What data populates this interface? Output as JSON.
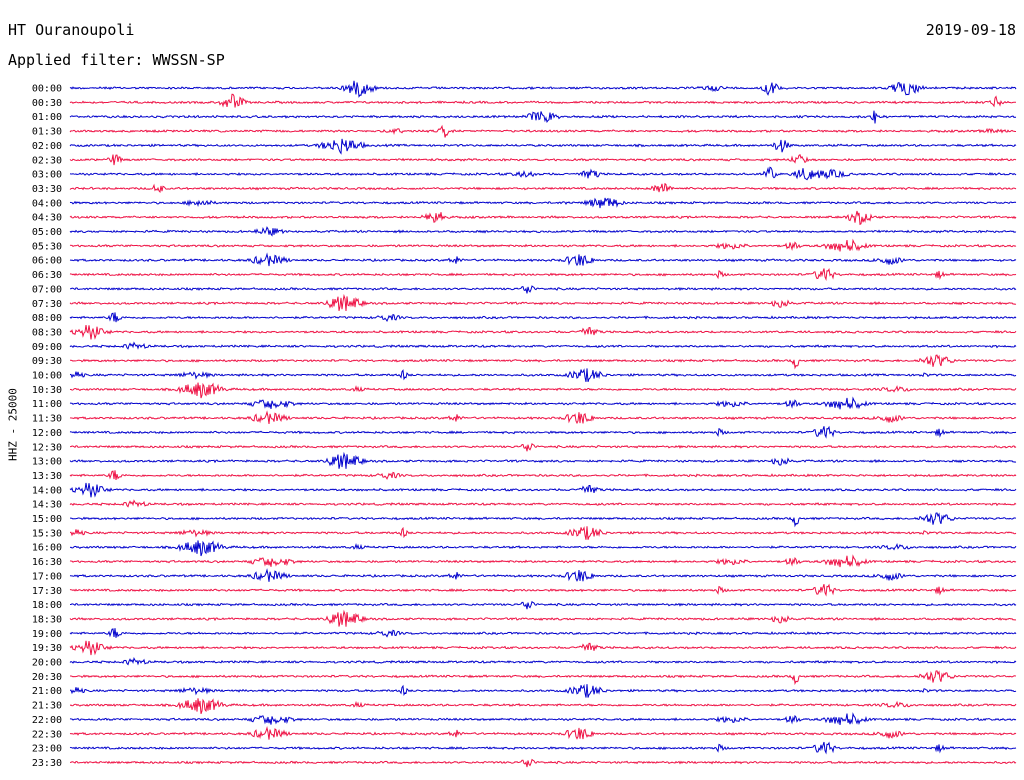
{
  "header": {
    "station": "HT Ouranoupoli",
    "date": "2019-09-18",
    "filter_prefix": "Applied filter: ",
    "filter_name": "WWSSN-SP"
  },
  "colors": {
    "trace_a": "#0000cc",
    "trace_b": "#ee1144"
  },
  "chart_data": {
    "type": "line",
    "title": "HT Ouranoupoli",
    "subtitle": "Applied filter: WWSSN-SP",
    "date": "2019-09-18",
    "ylabel": "HHZ - 25000",
    "xlabel": "",
    "grid": false,
    "row_labels": [
      "00:00",
      "00:30",
      "01:00",
      "01:30",
      "02:00",
      "02:30",
      "03:00",
      "03:30",
      "04:00",
      "04:30",
      "05:00",
      "05:30",
      "06:00",
      "06:30",
      "07:00",
      "07:30",
      "08:00",
      "08:30",
      "09:00",
      "09:30",
      "10:00",
      "10:30",
      "11:00",
      "11:30",
      "12:00",
      "12:30",
      "13:00",
      "13:30",
      "14:00",
      "14:30",
      "15:00",
      "15:30",
      "16:00",
      "16:30",
      "17:00",
      "17:30",
      "18:00",
      "18:30",
      "19:00",
      "19:30",
      "20:00",
      "20:30",
      "21:00",
      "21:30",
      "22:00",
      "22:30",
      "23:00",
      "23:30"
    ],
    "row_colors": [
      "blue",
      "red"
    ]
  }
}
